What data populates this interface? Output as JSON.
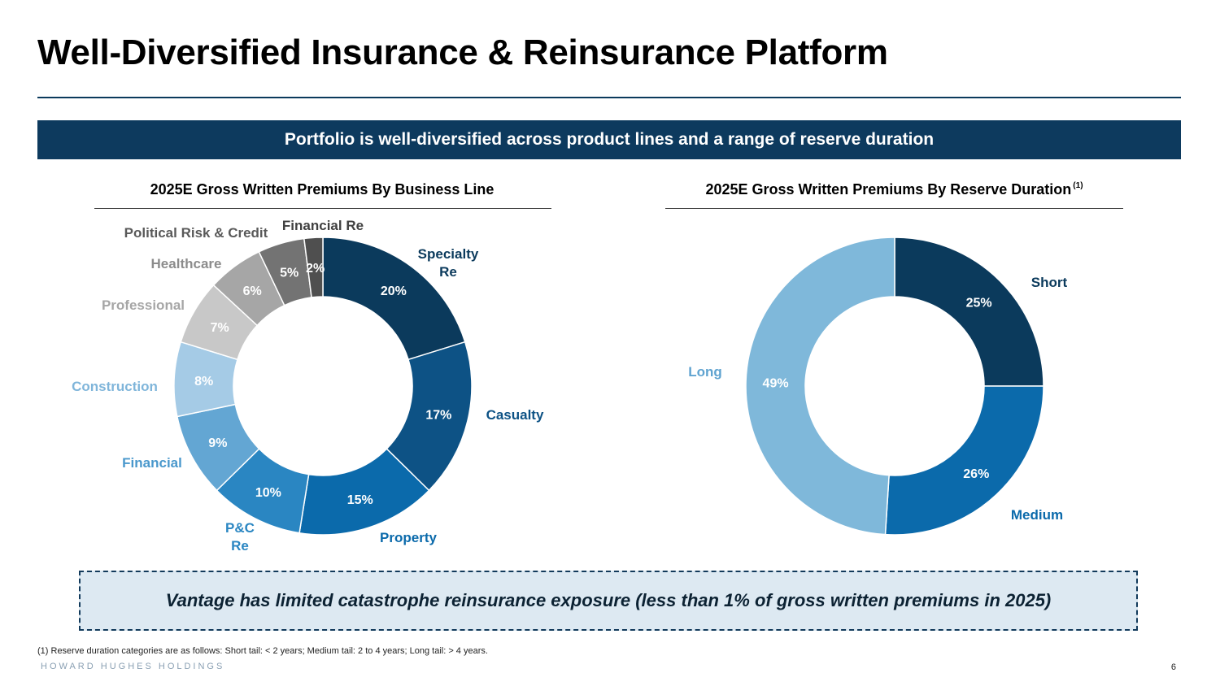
{
  "title": "Well-Diversified Insurance & Reinsurance Platform",
  "banner": "Portfolio is well-diversified across product lines and a range of reserve duration",
  "callout": "Vantage has limited catastrophe reinsurance exposure (less than 1% of gross written premiums in 2025)",
  "footnote": "(1) Reserve duration categories are as follows: Short tail: < 2 years; Medium tail: 2 to 4 years; Long tail: > 4 years.",
  "company": "HOWARD HUGHES HOLDINGS",
  "page_number": "6",
  "chart_data": [
    {
      "type": "pie",
      "title": "2025E Gross Written Premiums By Business Line",
      "footnote_marker": "",
      "categories": [
        "Specialty Re",
        "Casualty",
        "Property",
        "P&C Re",
        "Financial",
        "Construction",
        "Professional",
        "Healthcare",
        "Political Risk & Credit",
        "Financial Re"
      ],
      "values": [
        20,
        17,
        15,
        10,
        9,
        8,
        7,
        6,
        5,
        2
      ],
      "value_labels": [
        "20%",
        "17%",
        "15%",
        "10%",
        "9%",
        "8%",
        "7%",
        "6%",
        "5%",
        "2%"
      ],
      "label_lines": [
        [
          "Specialty",
          "Re"
        ],
        [
          "Casualty"
        ],
        [
          "Property"
        ],
        [
          "P&C",
          "Re"
        ],
        [
          "Financial"
        ],
        [
          "Construction"
        ],
        [
          "Professional"
        ],
        [
          "Healthcare"
        ],
        [
          "Political Risk & Credit"
        ],
        [
          "Financial Re"
        ]
      ],
      "colors": [
        "#0b3a5c",
        "#0d5285",
        "#0b6aab",
        "#2a86c2",
        "#63a6d3",
        "#a5cbe6",
        "#c8c8c8",
        "#a6a6a6",
        "#737373",
        "#4f4f4f"
      ],
      "label_colors": [
        "#0b3a5c",
        "#0d5285",
        "#0b6aab",
        "#2a86c2",
        "#4a98cc",
        "#7fb5da",
        "#a6a6a6",
        "#8c8c8c",
        "#595959",
        "#404040"
      ],
      "donut": true
    },
    {
      "type": "pie",
      "title": "2025E Gross Written Premiums By Reserve Duration",
      "footnote_marker": "(1)",
      "categories": [
        "Short",
        "Medium",
        "Long"
      ],
      "values": [
        25,
        26,
        49
      ],
      "value_labels": [
        "25%",
        "26%",
        "49%"
      ],
      "label_lines": [
        [
          "Short"
        ],
        [
          "Medium"
        ],
        [
          "Long"
        ]
      ],
      "colors": [
        "#0b3a5c",
        "#0b6aab",
        "#7fb8da"
      ],
      "label_colors": [
        "#0b3a5c",
        "#0b6aab",
        "#5fa3d0"
      ],
      "donut": true
    }
  ]
}
